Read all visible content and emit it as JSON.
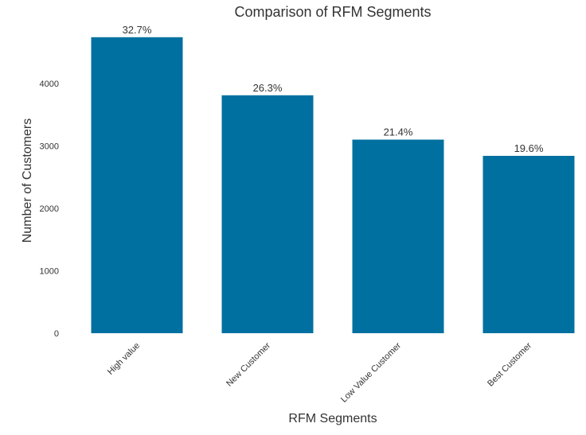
{
  "chart_data": {
    "type": "bar",
    "title": "Comparison of RFM Segments",
    "xlabel": "RFM Segments",
    "ylabel": "Number of Customers",
    "categories": [
      "High value",
      "New Customer",
      "Low Value Customer",
      "Best Customer"
    ],
    "values": [
      4740,
      3810,
      3100,
      2840
    ],
    "data_labels": [
      "32.7%",
      "26.3%",
      "21.4%",
      "19.6%"
    ],
    "ylim": [
      0,
      4750
    ],
    "yticks": [
      0,
      1000,
      2000,
      3000,
      4000
    ],
    "ytick_labels": [
      "0",
      "1000",
      "2000",
      "3000",
      "4000"
    ],
    "grid": false,
    "bar_color": "#0070A0",
    "background": "#FFFFFF"
  }
}
